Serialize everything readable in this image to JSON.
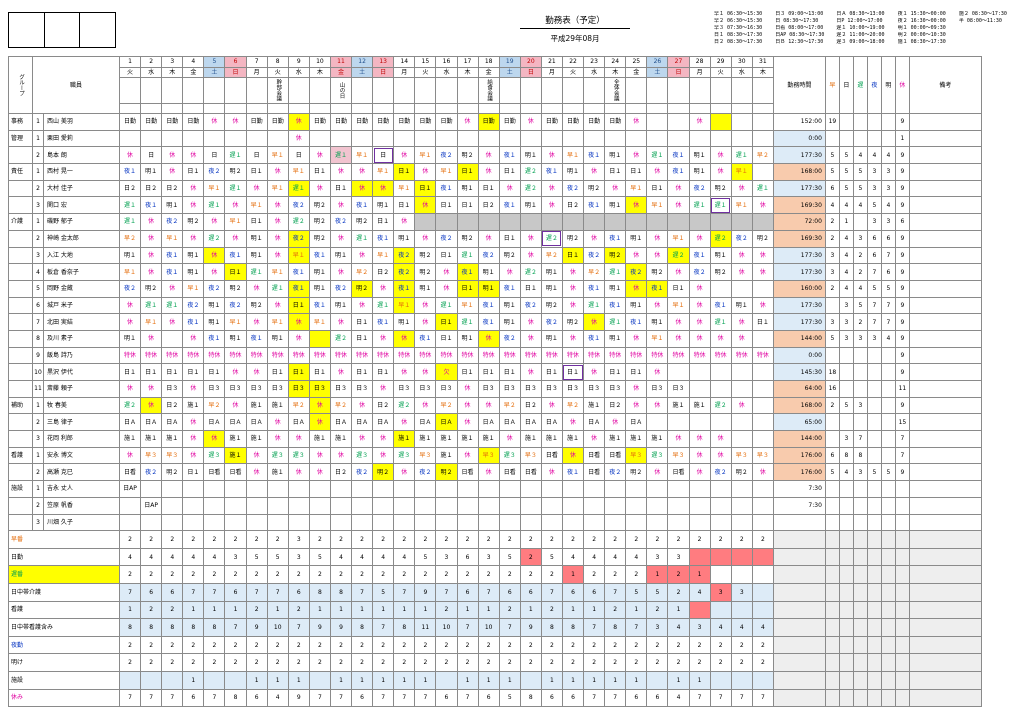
{
  "header": {
    "title": "勤務表（予定）",
    "subtitle": "平成29年08月"
  },
  "legend": [
    [
      "早１ 06:30～15:30",
      "日３ 09:00～13:00",
      "日Ａ 08:30～13:00",
      "夜１ 15:30～00:00",
      "施２ 08:30～17:30"
    ],
    [
      "早２ 06:30～15:30",
      "日 08:30～17:30",
      "日P 12:00～17:00",
      "夜２ 16:30～00:00",
      "半 08:00～11:30"
    ],
    [
      "早３ 07:30～16:30",
      "日看 08:00～17:00",
      "遅１ 10:00～19:00",
      "明１ 00:00～09:30",
      ""
    ],
    [
      "日１ 08:30～17:30",
      "日AP 08:30～17:30",
      "遅２ 11:00～20:00",
      "明２ 00:00～10:30",
      ""
    ],
    [
      "日２ 08:30～17:30",
      "日Ｂ 12:30～17:30",
      "遅３ 09:00～18:00",
      "施１ 08:30～17:30",
      ""
    ]
  ],
  "cols": {
    "group": "グループ",
    "staff": "職員",
    "hours": "勤務時間",
    "haya": "早",
    "nichi": "日",
    "oso": "遅",
    "yoru": "夜",
    "ake": "明",
    "kyu": "休",
    "note": "備考"
  },
  "days": [
    "1",
    "2",
    "3",
    "4",
    "5",
    "6",
    "7",
    "8",
    "9",
    "10",
    "11",
    "12",
    "13",
    "14",
    "15",
    "16",
    "17",
    "18",
    "19",
    "20",
    "21",
    "22",
    "23",
    "24",
    "25",
    "26",
    "27",
    "28",
    "29",
    "30",
    "31"
  ],
  "weekdays": [
    "火",
    "水",
    "木",
    "金",
    "土",
    "日",
    "月",
    "火",
    "水",
    "木",
    "金",
    "土",
    "日",
    "月",
    "火",
    "水",
    "木",
    "金",
    "土",
    "日",
    "月",
    "火",
    "水",
    "木",
    "金",
    "土",
    "日",
    "月",
    "火",
    "水",
    "木"
  ],
  "events": {
    "7": "幹部会議",
    "10": "山の日",
    "17": "給食会議",
    "23": "全体会議"
  },
  "staff": [
    {
      "g": "事務",
      "n": "1",
      "name": "西山 美羽",
      "s": "日勤,日勤,日勤,日勤,休,休,日勤,日勤,休,日勤,日勤,日勤,日勤,日勤,日勤,日勤,休,日勤,日勤,休,日勤,日勤,日勤,日勤,休,,,休,,,",
      "h": "152:00",
      "c": [
        "19",
        "",
        "",
        "",
        "",
        "9"
      ]
    },
    {
      "g": "管理",
      "n": "1",
      "name": "栗田 愛莉",
      "s": ",,,,,,,,休,,,,,,,,,,,,,,,,,,,,,,",
      "h": "0:00",
      "c": [
        "",
        "",
        "",
        "",
        "",
        "1"
      ]
    },
    {
      "g": "",
      "n": "2",
      "name": "島本 朗",
      "s": "休,日,休,休,日,遅１,日,早１,日,休,遅１,早１,日,休,早１,夜２,明２,休,夜１,明１,休,早１,夜１,明１,休,遅１,夜１,明１,休,遅１,早２",
      "h": "177:30",
      "c": [
        "5",
        "5",
        "4",
        "4",
        "4",
        "9"
      ]
    },
    {
      "g": "責任",
      "n": "1",
      "name": "西村 晃一",
      "s": "夜１,明１,休,日１,夜２,明２,日１,休,早１,日１,休,休,早１,日１,休,早１,日１,休,日１,遅２,夜１,明１,休,日１,日１,休,夜１,明１,休,早１,",
      "h": "168:00",
      "c": [
        "5",
        "5",
        "5",
        "3",
        "3",
        "9"
      ]
    },
    {
      "g": "",
      "n": "2",
      "name": "大村 佳子",
      "s": "日２,日２,日２,休,早１,遅１,休,早１,遅１,休,日１,休,休,早１,日１,夜１,明１,日１,休,遅２,休,夜２,明２,休,早１,日１,休,夜２,明２,休,遅１",
      "h": "177:30",
      "c": [
        "6",
        "5",
        "5",
        "3",
        "3",
        "9"
      ]
    },
    {
      "g": "",
      "n": "3",
      "name": "関口 宏",
      "s": "遅１,夜１,明１,休,遅１,休,早１,休,夜２,明２,休,夜１,明１,日１,休,日１,日１,日２,夜１,明１,休,日２,夜１,明１,休,早１,休,遅１,遅１,早１,休",
      "h": "169:30",
      "c": [
        "4",
        "4",
        "4",
        "5",
        "4",
        "9"
      ]
    },
    {
      "g": "介護",
      "n": "1",
      "name": "磯野 郁子",
      "s": "遅１,休,夜２,明２,休,早１,日１,休,遅２,明２,夜２,明２,日１,休,,,,,,,,,,,,,,,,,",
      "h": "72:00",
      "c": [
        "2",
        "1",
        "",
        "3",
        "3",
        "6"
      ]
    },
    {
      "g": "",
      "n": "2",
      "name": "神崎 金太郎",
      "s": "早２,休,早１,休,遅２,休,明１,休,夜２,明２,休,遅１,夜１,明１,休,夜２,明２,休,日１,休,遅２,明２,休,夜１,明１,休,早１,休,遅２,夜２,明２",
      "h": "169:30",
      "c": [
        "2",
        "4",
        "3",
        "6",
        "6",
        "9"
      ]
    },
    {
      "g": "",
      "n": "3",
      "name": "入江 大地",
      "s": "明１,休,夜１,明１,休,夜１,明１,休,早１,夜１,明１,休,早１,夜２,明２,日１,遅１,夜２,明２,休,早２,日１,夜２,明２,休,休,遅２,夜１,明１,休,休",
      "h": "177:30",
      "c": [
        "3",
        "4",
        "2",
        "6",
        "7",
        "9"
      ]
    },
    {
      "g": "",
      "n": "4",
      "name": "板倉 香奈子",
      "s": "早１,休,夜１,明１,休,日１,遅１,早１,夜１,明１,休,早２,日２,夜２,明２,休,夜１,明１,休,遅２,明１,休,早２,遅１,夜２,明２,休,夜２,明２,休,休",
      "h": "177:30",
      "c": [
        "3",
        "4",
        "2",
        "7",
        "6",
        "9"
      ]
    },
    {
      "g": "",
      "n": "5",
      "name": "岡野 金蔵",
      "s": "夜２,明２,休,早１,夜２,明２,休,遅１,夜１,明１,夜２,明２,休,夜１,明１,休,日１,明１,夜１,日１,明１,休,夜１,明１,休,夜１,日１,休,,,",
      "h": "160:00",
      "c": [
        "2",
        "4",
        "4",
        "5",
        "5",
        "9"
      ]
    },
    {
      "g": "",
      "n": "6",
      "name": "城戸 米子",
      "s": "休,遅１,遅１,夜２,明１,夜２,明２,休,日１,夜１,明１,休,遅１,早１,休,遅１,早１,夜１,明１,夜２,明２,休,遅１,夜１,明１,休,早１,休,夜１,明１,休",
      "h": "177:30",
      "c": [
        "",
        "3",
        "5",
        "7",
        "7",
        "9"
      ]
    },
    {
      "g": "",
      "n": "7",
      "name": "北田 実結",
      "s": "休,早１,休,夜１,明１,早１,休,早１,休,早１,休,日１,夜１,明１,休,日１,遅１,夜１,明１,休,夜２,明２,休,遅１,夜１,明１,休,休,遅１,休,日１",
      "h": "177:30",
      "c": [
        "3",
        "3",
        "2",
        "7",
        "7",
        "9"
      ]
    },
    {
      "g": "",
      "n": "8",
      "name": "及川 素子",
      "s": "明１,休,,休,夜１,明１,夜１,明１,休,,遅２,日１,休,休,夜１,日１,明１,休,夜２,休,明１,休,夜１,明１,休,早１,休,休,休,休,",
      "h": "144:00",
      "c": [
        "5",
        "3",
        "3",
        "3",
        "4",
        "9"
      ]
    },
    {
      "g": "",
      "n": "9",
      "name": "飯島 詩乃",
      "s": "特休,特休,特休,特休,特休,特休,特休,特休,特休,特休,特休,特休,特休,特休,特休,特休,特休,特休,特休,特休,特休,特休,特休,特休,特休,特休,特休,特休,特休,特休,特休",
      "h": "0:00",
      "c": [
        "",
        "",
        "",
        "",
        "",
        "9"
      ]
    },
    {
      "g": "",
      "n": "10",
      "name": "黒沢 伊代",
      "s": "日１,日１,日１,日１,日１,休,休,日１,日１,日１,休,日１,日１,休,休,欠,日１,日１,日１,休,日１,日１,休,日１,日１,休,,,,,",
      "h": "145:30",
      "c": [
        "18",
        "",
        "",
        "",
        "",
        "9"
      ]
    },
    {
      "g": "",
      "n": "11",
      "name": "斎藤 頼子",
      "s": "休,休,日３,休,日３,日３,日３,日３,日３,日３,日３,日３,休,日３,日３,日３,休,日３,日３,日３,日３,日３,日３,日３,休,日３,日３,,,,",
      "h": "64:00",
      "c": [
        "16",
        "",
        "",
        "",
        "",
        "11"
      ]
    },
    {
      "g": "補助",
      "n": "1",
      "name": "牧 春美",
      "s": "遅２,休,日２,施１,早２,休,施１,施１,早２,休,早２,休,日２,遅２,休,早２,休,休,早２,日２,休,早２,施１,日２,休,休,施１,施１,遅２,休,",
      "h": "168:00",
      "c": [
        "2",
        "5",
        "3",
        "",
        "",
        "9"
      ]
    },
    {
      "g": "",
      "n": "2",
      "name": "三島 律子",
      "s": "日Ａ,日Ａ,日Ａ,休,日Ａ,日Ａ,日Ａ,休,日Ａ,休,日Ａ,日Ａ,日Ａ,休,日Ａ,日Ａ,休,日Ａ,日Ａ,日Ａ,日Ａ,休,日Ａ,休,日Ａ,,,,,,",
      "h": "65:00",
      "c": [
        "",
        "",
        "",
        "",
        "",
        "15"
      ]
    },
    {
      "g": "",
      "n": "3",
      "name": "花岡 利郎",
      "s": "施１,施１,施１,休,休,施１,施１,休,休,施１,施１,休,休,施１,施１,施１,施１,施１,休,施１,施１,施１,休,施１,施１,施１,休,休,休,,",
      "h": "144:00",
      "c": [
        "",
        "3",
        "7",
        "",
        "",
        "7"
      ]
    },
    {
      "g": "看護",
      "n": "1",
      "name": "安永 博文",
      "s": "休,早３,早３,休,遅３,施１,休,遅３,遅３,休,休,遅３,休,遅３,早３,施１,休,早３,遅３,早３,日看,休,日看,日看,早３,遅３,早３,休,休,早３,早３",
      "h": "176:00",
      "c": [
        "6",
        "8",
        "8",
        "",
        "",
        "7"
      ]
    },
    {
      "g": "",
      "n": "2",
      "name": "高瀬 克巳",
      "s": "日看,夜２,明２,日１,日看,日看,休,施１,休,休,日２,夜２,明２,休,夜２,明２,日看,休,日看,日看,休,夜１,日看,夜２,明２,休,日看,休,夜２,明２,休",
      "h": "176:00",
      "c": [
        "5",
        "4",
        "3",
        "5",
        "5",
        "9"
      ]
    },
    {
      "g": "施設",
      "n": "1",
      "name": "吉永 丈人",
      "s": "日AP,,,,,,,,,,,,,,,,,,,,,,,,,,,,,,",
      "h": "7:30",
      "c": [
        "",
        "",
        "",
        "",
        "",
        ""
      ]
    },
    {
      "g": "",
      "n": "2",
      "name": "笠原 帆香",
      "s": ",日AP,,,,,,,,,,,,,,,,,,,,,,,,,,,,,",
      "h": "7:30",
      "c": [
        "",
        "",
        "",
        "",
        "",
        ""
      ]
    },
    {
      "g": "",
      "n": "3",
      "name": "川畑 久子",
      "s": ",,,,,,,,,,,,,,,,,,,,,,,,,,,,,,",
      "h": "",
      "c": [
        "",
        "",
        "",
        "",
        "",
        ""
      ]
    }
  ],
  "summary": [
    {
      "label": "早番",
      "v": "2,2,2,2,2,2,2,2,3,2,2,2,2,2,2,2,2,2,2,2,2,2,2,2,2,2,2,2,2,2,2"
    },
    {
      "label": "日勤",
      "v": "4,4,4,4,4,3,5,5,3,5,4,4,4,4,5,3,6,3,5,2,5,4,4,4,4,3,3,,,,"
    },
    {
      "label": "遅番",
      "v": "2,2,2,2,2,2,2,2,2,2,2,2,2,2,2,2,2,2,2,2,2,1,2,2,2,1,2,1,,,"
    },
    {
      "label": "日中帯介護",
      "v": "7,6,6,7,7,6,7,7,6,8,8,7,5,7,9,7,6,7,6,6,7,6,6,7,5,5,2,4,3,3,"
    },
    {
      "label": "看護",
      "v": "1,2,2,1,1,1,2,1,2,1,1,1,1,1,1,2,1,1,2,1,2,1,1,2,1,2,1,,,,"
    },
    {
      "label": "日中帯看護含み",
      "v": "8,8,8,8,8,7,9,10,7,9,9,8,7,8,11,10,7,10,7,9,8,8,7,8,7,3,4,3,4,4,4"
    },
    {
      "label": "夜勤",
      "v": "2,2,2,2,2,2,2,2,2,2,2,2,2,2,2,2,2,2,2,2,2,2,2,2,2,2,2,2,2,2,2"
    },
    {
      "label": "明け",
      "v": "2,2,2,2,2,2,2,2,2,2,2,2,2,2,2,2,2,2,2,2,2,2,2,2,2,2,2,2,2,2,2"
    },
    {
      "label": "施設",
      "v": ",,,1,,,1,1,1,,1,1,1,1,1,,1,1,1,,1,1,1,1,1,,1,1,,,"
    },
    {
      "label": "休み",
      "v": "7,7,7,6,7,8,6,4,9,7,7,6,7,7,7,6,7,6,5,8,6,6,7,7,6,6,4,7,7,7,7"
    }
  ],
  "colors": {
    "early": "#e46c0a",
    "late": "#00a050",
    "night": "#0030c0",
    "off": "#e000a0",
    "yellow": "#ffff00",
    "hours": "#f8cbad",
    "gray": "#c8c8c8"
  }
}
